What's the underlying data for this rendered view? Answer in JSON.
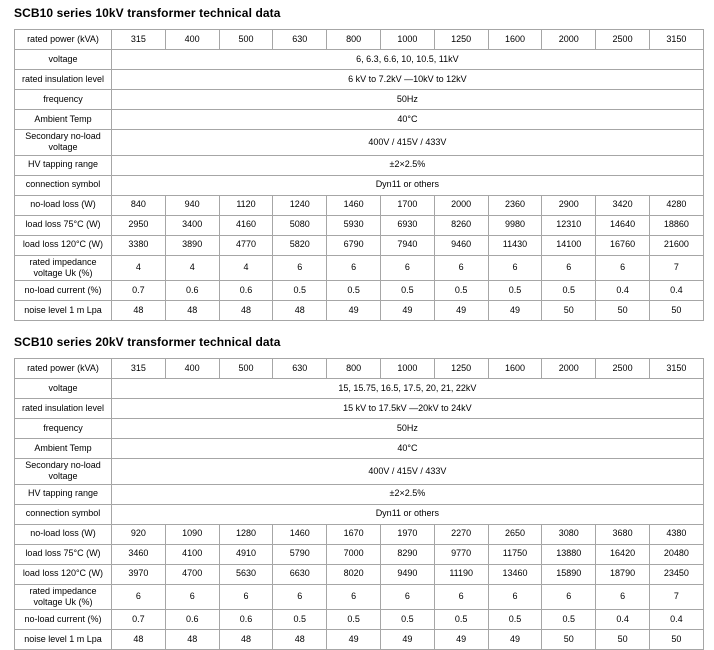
{
  "page_background": "#ffffff",
  "border_color": "#a6a6a6",
  "text_color": "#000000",
  "tables": [
    {
      "title": "SCB10 series 10kV transformer technical data",
      "column_count": 11,
      "rows": [
        {
          "label": "rated power (kVA)",
          "values": [
            "315",
            "400",
            "500",
            "630",
            "800",
            "1000",
            "1250",
            "1600",
            "2000",
            "2500",
            "3150"
          ]
        },
        {
          "label": "voltage",
          "span_value": "6, 6.3, 6.6, 10, 10.5, 11kV"
        },
        {
          "label": "rated insulation level",
          "span_value": "6 kV to 7.2kV —10kV to 12kV"
        },
        {
          "label": "frequency",
          "span_value": "50Hz"
        },
        {
          "label": "Ambient Temp",
          "span_value": "40°C"
        },
        {
          "label": "Secondary no-load voltage",
          "span_value": "400V / 415V / 433V"
        },
        {
          "label": "HV tapping range",
          "span_value": "±2×2.5%"
        },
        {
          "label": "connection symbol",
          "span_value": "Dyn11 or others"
        },
        {
          "label": "no-load loss (W)",
          "values": [
            "840",
            "940",
            "1120",
            "1240",
            "1460",
            "1700",
            "2000",
            "2360",
            "2900",
            "3420",
            "4280"
          ]
        },
        {
          "label": "load loss 75°C (W)",
          "values": [
            "2950",
            "3400",
            "4160",
            "5080",
            "5930",
            "6930",
            "8260",
            "9980",
            "12310",
            "14640",
            "18860"
          ]
        },
        {
          "label": "load loss 120°C (W)",
          "values": [
            "3380",
            "3890",
            "4770",
            "5820",
            "6790",
            "7940",
            "9460",
            "11430",
            "14100",
            "16760",
            "21600"
          ]
        },
        {
          "label": "rated impedance voltage Uk (%)",
          "values": [
            "4",
            "4",
            "4",
            "6",
            "6",
            "6",
            "6",
            "6",
            "6",
            "6",
            "7"
          ]
        },
        {
          "label": "no-load current (%)",
          "values": [
            "0.7",
            "0.6",
            "0.6",
            "0.5",
            "0.5",
            "0.5",
            "0.5",
            "0.5",
            "0.5",
            "0.4",
            "0.4"
          ]
        },
        {
          "label": "noise level 1 m Lpa",
          "values": [
            "48",
            "48",
            "48",
            "48",
            "49",
            "49",
            "49",
            "49",
            "50",
            "50",
            "50"
          ]
        }
      ]
    },
    {
      "title": "SCB10 series 20kV transformer technical data",
      "column_count": 11,
      "rows": [
        {
          "label": "rated power (kVA)",
          "values": [
            "315",
            "400",
            "500",
            "630",
            "800",
            "1000",
            "1250",
            "1600",
            "2000",
            "2500",
            "3150"
          ]
        },
        {
          "label": "voltage",
          "span_value": "15, 15.75, 16.5, 17.5, 20, 21, 22kV"
        },
        {
          "label": "rated insulation level",
          "span_value": "15 kV to 17.5kV —20kV to 24kV"
        },
        {
          "label": "frequency",
          "span_value": "50Hz"
        },
        {
          "label": "Ambient Temp",
          "span_value": "40°C"
        },
        {
          "label": "Secondary no-load voltage",
          "span_value": "400V / 415V / 433V"
        },
        {
          "label": "HV tapping range",
          "span_value": "±2×2.5%"
        },
        {
          "label": "connection symbol",
          "span_value": "Dyn11 or others"
        },
        {
          "label": "no-load loss (W)",
          "values": [
            "920",
            "1090",
            "1280",
            "1460",
            "1670",
            "1970",
            "2270",
            "2650",
            "3080",
            "3680",
            "4380"
          ]
        },
        {
          "label": "load loss 75°C (W)",
          "values": [
            "3460",
            "4100",
            "4910",
            "5790",
            "7000",
            "8290",
            "9770",
            "11750",
            "13880",
            "16420",
            "20480"
          ]
        },
        {
          "label": "load loss 120°C (W)",
          "values": [
            "3970",
            "4700",
            "5630",
            "6630",
            "8020",
            "9490",
            "11190",
            "13460",
            "15890",
            "18790",
            "23450"
          ]
        },
        {
          "label": "rated impedance voltage Uk (%)",
          "values": [
            "6",
            "6",
            "6",
            "6",
            "6",
            "6",
            "6",
            "6",
            "6",
            "6",
            "7"
          ]
        },
        {
          "label": "no-load current (%)",
          "values": [
            "0.7",
            "0.6",
            "0.6",
            "0.5",
            "0.5",
            "0.5",
            "0.5",
            "0.5",
            "0.5",
            "0.4",
            "0.4"
          ]
        },
        {
          "label": "noise level 1 m Lpa",
          "values": [
            "48",
            "48",
            "48",
            "48",
            "49",
            "49",
            "49",
            "49",
            "50",
            "50",
            "50"
          ]
        }
      ]
    }
  ]
}
